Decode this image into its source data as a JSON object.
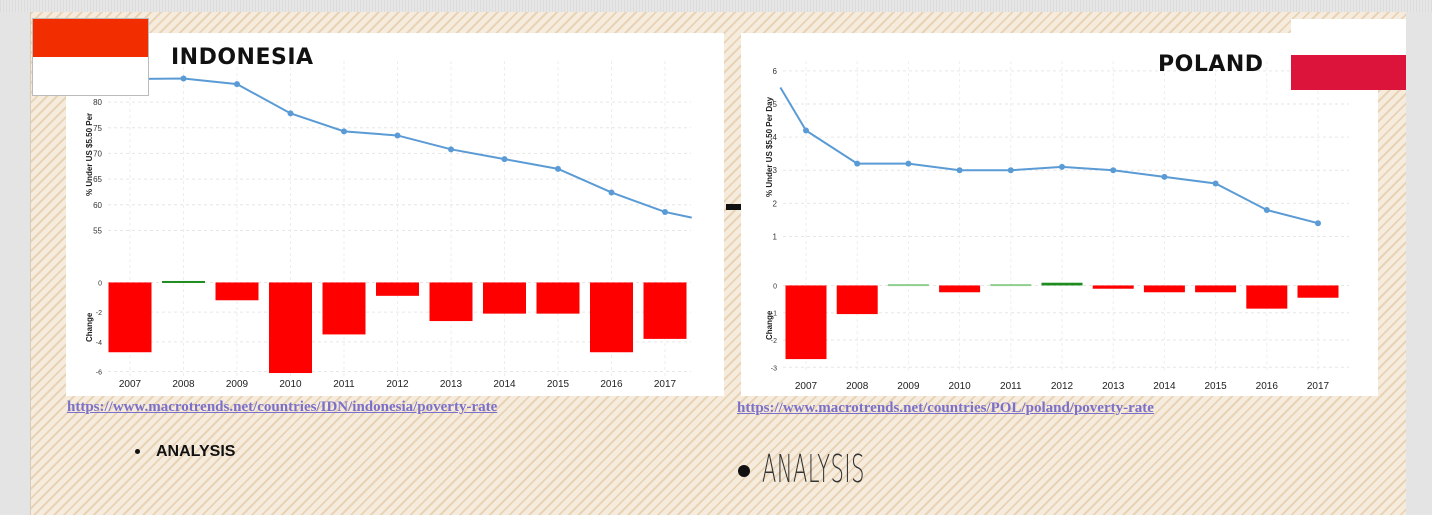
{
  "slide": {
    "left_country": "INDONESIA",
    "right_country": "POLAND",
    "left_link": "https://www.macrotrends.net/countries/IDN/indonesia/poverty-rate",
    "right_link": "https://www.macrotrends.net/countries/POL/poland/poverty-rate",
    "bullet_small": "ANALYSIS",
    "bullet_large": "ANALYSIS",
    "flags": {
      "indonesia": [
        "#f22d00",
        "#ffffff"
      ],
      "poland": [
        "#ffffff",
        "#dc143c"
      ]
    }
  },
  "chart_data": [
    {
      "type": "line",
      "country": "Indonesia",
      "ylabel": "% Under US $5.50 Per",
      "x": [
        2006.5,
        2007,
        2008,
        2009,
        2010,
        2011,
        2012,
        2013,
        2014,
        2015,
        2016,
        2017,
        2017.5
      ],
      "values": [
        84.5,
        84.5,
        84.6,
        83.5,
        77.8,
        74.3,
        73.5,
        70.8,
        68.9,
        67.0,
        62.4,
        58.6,
        57.5
      ],
      "yticks": [
        55,
        60,
        65,
        70,
        75,
        80
      ],
      "ylim": [
        51,
        88
      ],
      "change": {
        "type": "bar",
        "ylabel": "Change",
        "categories": [
          "2007",
          "2008",
          "2009",
          "2010",
          "2011",
          "2012",
          "2013",
          "2014",
          "2015",
          "2016",
          "2017"
        ],
        "values": [
          -4.7,
          0.1,
          -1.2,
          -6.1,
          -3.5,
          -0.9,
          -2.6,
          -2.1,
          -2.1,
          -4.7,
          -3.8
        ],
        "colors": {
          "negative": "#ff0000",
          "positive": "#1e8c1e"
        },
        "yticks": [
          0,
          -2,
          -4,
          -6
        ],
        "ylim": [
          -6.3,
          0.3
        ]
      },
      "line_color": "#5b9bd5"
    },
    {
      "type": "line",
      "country": "Poland",
      "ylabel": "% Under US $5.50 Per Day",
      "x": [
        2006.5,
        2007,
        2008,
        2009,
        2010,
        2011,
        2012,
        2013,
        2014,
        2015,
        2016,
        2017
      ],
      "values": [
        5.5,
        4.2,
        3.2,
        3.2,
        3.0,
        3.0,
        3.1,
        3.0,
        2.8,
        2.6,
        1.8,
        1.4
      ],
      "yticks": [
        1,
        2,
        3,
        4,
        5,
        6
      ],
      "ylim": [
        0.5,
        6.3
      ],
      "change": {
        "type": "bar",
        "ylabel": "Change",
        "categories": [
          "2007",
          "2008",
          "2009",
          "2010",
          "2011",
          "2012",
          "2013",
          "2014",
          "2015",
          "2016",
          "2017"
        ],
        "values": [
          -2.7,
          -1.05,
          0.05,
          -0.25,
          0.05,
          0.1,
          -0.12,
          -0.25,
          -0.25,
          -0.85,
          -0.45
        ],
        "colors": {
          "negative": "#ff0000",
          "positive": "#1e8c1e",
          "small_positive": "#8fcf8f"
        },
        "yticks": [
          0,
          -1,
          -2,
          -3
        ],
        "ylim": [
          -3.1,
          0.2
        ]
      },
      "line_color": "#5b9bd5"
    }
  ]
}
